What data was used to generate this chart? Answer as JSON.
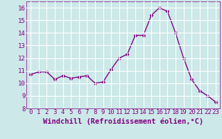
{
  "x": [
    0,
    1,
    2,
    3,
    4,
    5,
    6,
    7,
    8,
    9,
    10,
    11,
    12,
    13,
    14,
    15,
    16,
    17,
    18,
    19,
    20,
    21,
    22,
    23
  ],
  "y": [
    10.7,
    10.9,
    10.9,
    10.3,
    10.6,
    10.4,
    10.5,
    10.6,
    10.0,
    10.1,
    11.1,
    12.0,
    12.3,
    13.8,
    13.8,
    15.4,
    16.0,
    15.7,
    14.0,
    12.0,
    10.3,
    9.4,
    9.0,
    8.5
  ],
  "line_color": "#800080",
  "marker": "D",
  "xlabel": "Windchill (Refroidissement éolien,°C)",
  "ylim": [
    8,
    16.5
  ],
  "yticks": [
    8,
    9,
    10,
    11,
    12,
    13,
    14,
    15,
    16
  ],
  "xticks": [
    0,
    1,
    2,
    3,
    4,
    5,
    6,
    7,
    8,
    9,
    10,
    11,
    12,
    13,
    14,
    15,
    16,
    17,
    18,
    19,
    20,
    21,
    22,
    23
  ],
  "bg_color": "#cce8e8",
  "grid_color": "#ffffff",
  "tick_label_fontsize": 6.5,
  "xlabel_fontsize": 7.5
}
